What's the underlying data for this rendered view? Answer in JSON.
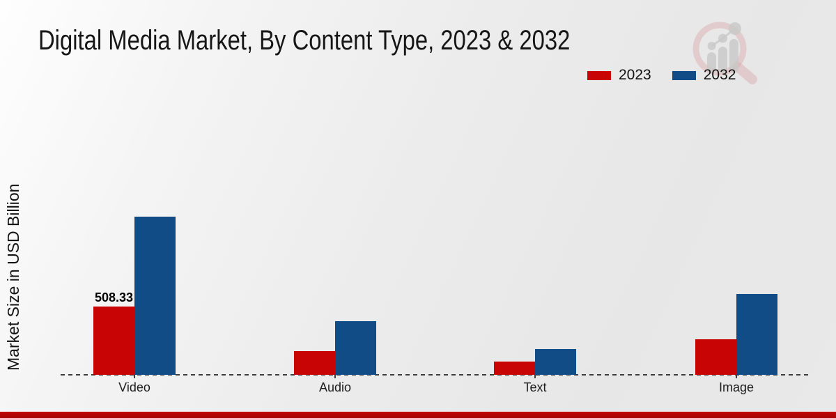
{
  "chart_data": {
    "type": "bar",
    "title": "Digital Media Market, By Content Type, 2023 & 2032",
    "ylabel": "Market Size in USD Billion",
    "xlabel": "",
    "categories": [
      "Video",
      "Audio",
      "Text",
      "Image"
    ],
    "series": [
      {
        "name": "2023",
        "color": "#c90404",
        "values": [
          508.33,
          175,
          98,
          265
        ]
      },
      {
        "name": "2032",
        "color": "#114c87",
        "values": [
          1180,
          400,
          190,
          600
        ]
      }
    ],
    "ylim": [
      0,
      1250
    ],
    "grid": false,
    "axis_style": "dashed-baseline-only",
    "legend_position": "top-right",
    "data_labels": [
      {
        "category": "Video",
        "series": "2023",
        "text": "508.33"
      }
    ]
  },
  "watermark": {
    "name": "magnifier-growth-chart-logo"
  },
  "footer": {
    "accent_color": "#b70505"
  },
  "background": {
    "base": "#ebebeb"
  }
}
